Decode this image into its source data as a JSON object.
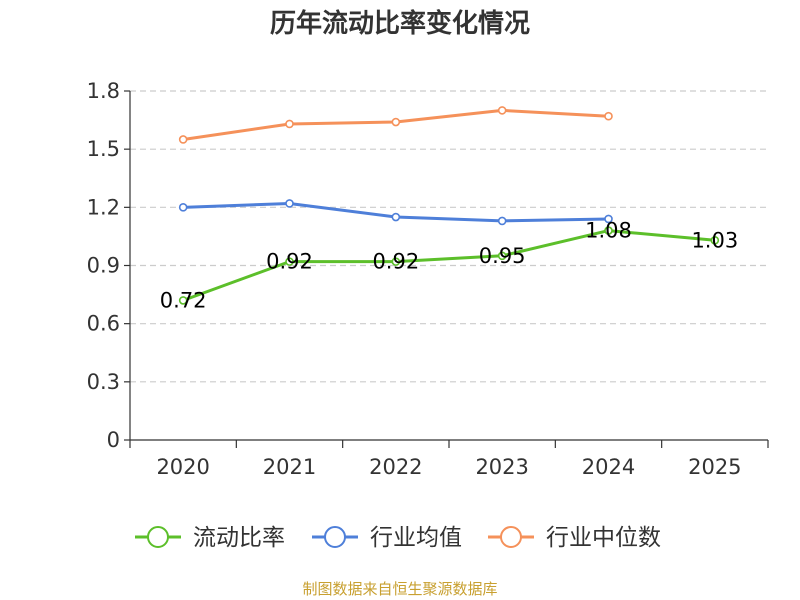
{
  "chart_data": {
    "type": "line",
    "title": "历年流动比率变化情况",
    "categories": [
      "2020",
      "2021",
      "2022",
      "2023",
      "2024",
      "2025"
    ],
    "y_ticks": [
      "0",
      "0.3",
      "0.6",
      "0.9",
      "1.2",
      "1.5",
      "1.8"
    ],
    "ylim": [
      0,
      1.8
    ],
    "grid": true,
    "legend_position": "bottom",
    "series": [
      {
        "name": "流动比率",
        "color": "#5cbf2a",
        "values": [
          0.72,
          0.92,
          0.92,
          0.95,
          1.08,
          1.03
        ],
        "labels": [
          "0.72",
          "0.92",
          "0.92",
          "0.95",
          "1.08",
          "1.03"
        ],
        "show_labels": true
      },
      {
        "name": "行业均值",
        "color": "#4e7fd9",
        "values": [
          1.2,
          1.22,
          1.15,
          1.13,
          1.14,
          null
        ],
        "show_labels": false
      },
      {
        "name": "行业中位数",
        "color": "#f5915a",
        "values": [
          1.55,
          1.63,
          1.64,
          1.7,
          1.67,
          null
        ],
        "show_labels": false
      }
    ]
  },
  "source": {
    "text": "制图数据来自恒生聚源数据库",
    "color": "#c8a030"
  }
}
